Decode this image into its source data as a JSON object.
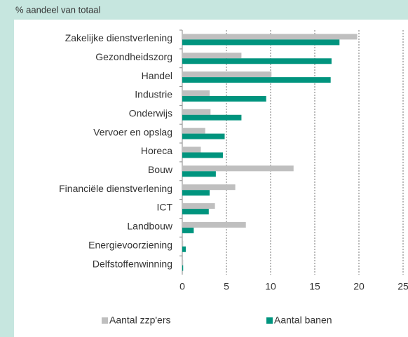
{
  "chart_data": {
    "type": "barh",
    "subtitle": "% aandeel van totaal",
    "categories": [
      "Zakelijke dienstverlening",
      "Gezondheidszorg",
      "Handel",
      "Industrie",
      "Onderwijs",
      "Vervoer en opslag",
      "Horeca",
      "Bouw",
      "Financiële dienstverlening",
      "ICT",
      "Landbouw",
      "Energievoorziening",
      "Delfstoffenwinning"
    ],
    "series": [
      {
        "name": "Aantal zzp'ers",
        "color": "#bfbfbf",
        "values": [
          19.8,
          6.7,
          10.1,
          3.1,
          3.2,
          2.6,
          2.1,
          12.6,
          6.0,
          3.7,
          7.2,
          0.1,
          0.1
        ]
      },
      {
        "name": "Aantal banen",
        "color": "#00947e",
        "values": [
          17.8,
          16.9,
          16.8,
          9.5,
          6.7,
          4.8,
          4.6,
          3.8,
          3.1,
          3.0,
          1.3,
          0.4,
          0.1
        ]
      }
    ],
    "xlim": [
      0,
      25
    ],
    "xticks": [
      0,
      5,
      10,
      15,
      20,
      25
    ],
    "grid": true,
    "legend": "bottom"
  }
}
